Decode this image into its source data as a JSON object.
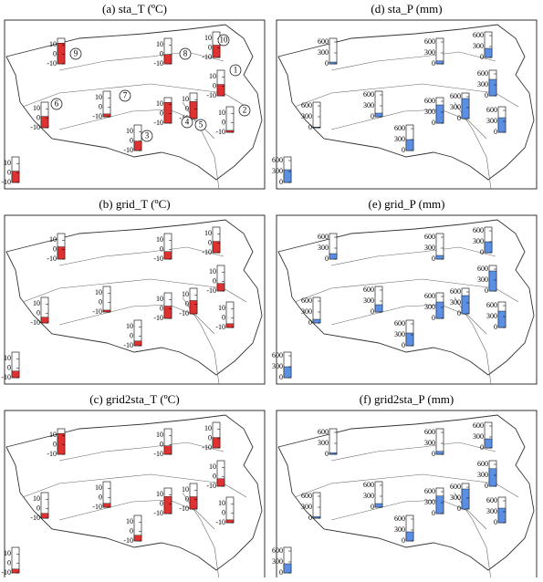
{
  "station_labels": [
    "1",
    "2",
    "3",
    "4",
    "5",
    "6",
    "7",
    "8",
    "9",
    "10"
  ],
  "variables": {
    "T": {
      "ticks": [
        10,
        0,
        -10
      ],
      "lim": [
        -10,
        17
      ],
      "color": "#e03131"
    },
    "P": {
      "ticks": [
        600,
        300,
        0
      ],
      "lim": [
        0,
        700
      ],
      "color": "#5b8fe3"
    }
  },
  "panels": [
    {
      "title": "(a) sta_T (ºC)",
      "variable": "T",
      "show_station_labels": true,
      "legend_value": 2,
      "values": [
        2,
        -8,
        0,
        12,
        8,
        2,
        -7,
        0,
        12,
        3
      ]
    },
    {
      "title": "(d) sta_P (mm)",
      "variable": "P",
      "show_station_labels": false,
      "legend_value": 350,
      "values": [
        450,
        400,
        300,
        500,
        550,
        20,
        100,
        80,
        50,
        250
      ]
    },
    {
      "title": "(b) grid_T (ºC)",
      "variable": "T",
      "show_station_labels": false,
      "legend_value": -3,
      "values": [
        -2,
        -6,
        -5,
        3,
        4,
        -4,
        -8,
        -2,
        3,
        2
      ]
    },
    {
      "title": "(e) grid_P (mm)",
      "variable": "P",
      "show_station_labels": false,
      "legend_value": 300,
      "values": [
        550,
        450,
        350,
        450,
        500,
        100,
        200,
        100,
        150,
        300
      ]
    },
    {
      "title": "(c) grid2sta_T (ºC)",
      "variable": "T",
      "show_station_labels": false,
      "legend_value": -6,
      "values": [
        -2,
        -7,
        -4,
        8,
        3,
        -5,
        -6,
        -1,
        12,
        1
      ]
    },
    {
      "title": "(f) grid2sta_P (mm)",
      "variable": "P",
      "show_station_labels": false,
      "legend_value": 250,
      "values": [
        480,
        400,
        250,
        480,
        550,
        40,
        100,
        80,
        40,
        250
      ]
    }
  ]
}
